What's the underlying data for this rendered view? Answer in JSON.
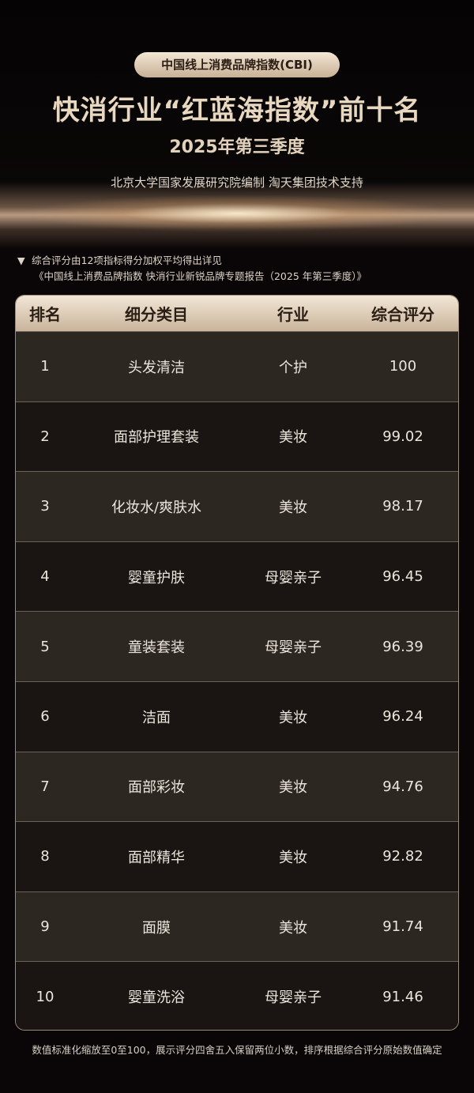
{
  "header": {
    "badge": "中国线上消费品牌指数(CBI)",
    "title": "快消行业“红蓝海指数”前十名",
    "subtitle": "2025年第三季度",
    "org": "北京大学国家发展研究院编制  淘天集团技术支持"
  },
  "note": {
    "line1": "综合评分由12项指标得分加权平均得出详见",
    "line2": "《中国线上消费品牌指数 快消行业新锐品牌专题报告（2025 年第三季度）》"
  },
  "table": {
    "columns": [
      "排名",
      "细分类目",
      "行业",
      "综合评分"
    ],
    "rows": [
      [
        "1",
        "头发清洁",
        "个护",
        "100"
      ],
      [
        "2",
        "面部护理套装",
        "美妆",
        "99.02"
      ],
      [
        "3",
        "化妆水/爽肤水",
        "美妆",
        "98.17"
      ],
      [
        "4",
        "婴童护肤",
        "母婴亲子",
        "96.45"
      ],
      [
        "5",
        "童装套装",
        "母婴亲子",
        "96.39"
      ],
      [
        "6",
        "洁面",
        "美妆",
        "96.24"
      ],
      [
        "7",
        "面部彩妆",
        "美妆",
        "94.76"
      ],
      [
        "8",
        "面部精华",
        "美妆",
        "92.82"
      ],
      [
        "9",
        "面膜",
        "美妆",
        "91.74"
      ],
      [
        "10",
        "婴童洗浴",
        "母婴亲子",
        "91.46"
      ]
    ]
  },
  "footer": "数值标准化缩放至0至100，展示评分四舍五入保留两位小数，排序根据综合评分原始数值确定",
  "colors": {
    "gold": "#d8c3a7",
    "background": "#0a0607"
  }
}
